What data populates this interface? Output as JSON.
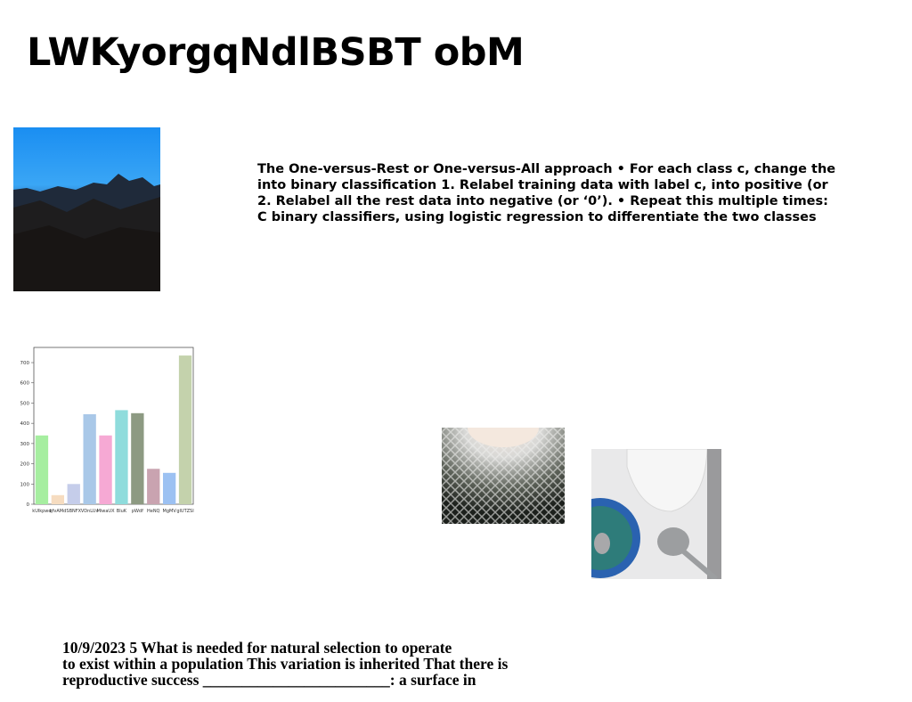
{
  "title": "LWKyorgqNdlBSBT obM",
  "paragraph_1": [
    "The One-versus-Rest or One-versus-All approach • For each class c, change the",
    "into binary classification 1. Relabel training data with label c, into positive (or",
    "2. Relabel all the rest data into negative (or ‘0’). • Repeat this multiple times:",
    "C binary classifiers, using logistic regression to differentiate the two classes"
  ],
  "paragraph_2": [
    "10/9/2023 5 What is needed for natural selection to operate",
    "to exist within a population This variation is inherited That there is",
    "reproductive success ________________________: a surface in"
  ],
  "chart_data": {
    "type": "bar",
    "categories": [
      "kUlkpwd",
      "qfvAMd",
      "SBNFX",
      "VDnLUv",
      "MiwaUX",
      "BluK",
      "pWdf",
      "HeNQ",
      "MgMV",
      "glUTZSI"
    ],
    "values": [
      340,
      45,
      100,
      445,
      340,
      465,
      450,
      175,
      155,
      735
    ],
    "colors": [
      "#a6eea0",
      "#f6dcc0",
      "#c5cdea",
      "#a9c8e8",
      "#f6a9d4",
      "#8fdcdc",
      "#8d9a82",
      "#c9a3b0",
      "#9cc1f2",
      "#c4d2ac"
    ],
    "ylim": [
      0,
      775
    ],
    "yticks": [
      0,
      100,
      200,
      300,
      400,
      500,
      600,
      700
    ]
  }
}
